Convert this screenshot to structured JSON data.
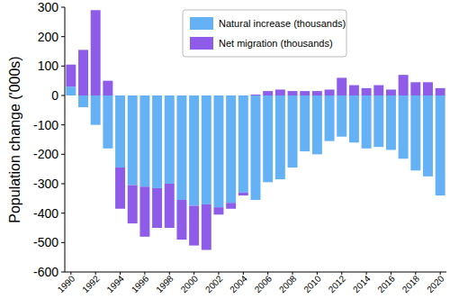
{
  "chart_data": {
    "type": "bar",
    "stacked": true,
    "legend": "upper center",
    "y_label": "Population change ('000s)",
    "categories": [
      "1990",
      null,
      "1992",
      null,
      "1994",
      null,
      "1996",
      null,
      "1998",
      null,
      "2000",
      null,
      "2002",
      null,
      "2004",
      null,
      "2006",
      null,
      "2008",
      null,
      "2010",
      null,
      "2012",
      null,
      "2014",
      null,
      "2016",
      null,
      "2018",
      null,
      "2020"
    ],
    "series": [
      {
        "name": "Natural increase (thousands)",
        "color": "#64b2f5",
        "values": [
          30,
          -40,
          -100,
          -180,
          -245,
          -305,
          -310,
          -315,
          -300,
          -355,
          -375,
          -370,
          -380,
          -365,
          -330,
          -355,
          -295,
          -285,
          -245,
          -190,
          -200,
          -155,
          -140,
          -160,
          -180,
          -175,
          -185,
          -215,
          -255,
          -275,
          -340
        ]
      },
      {
        "name": "Net migration (thousands)",
        "color": "#8e5ce8",
        "values": [
          75,
          155,
          290,
          50,
          -140,
          -130,
          -170,
          -135,
          -150,
          -135,
          -135,
          -155,
          -25,
          -20,
          -10,
          3,
          15,
          20,
          15,
          15,
          15,
          20,
          60,
          35,
          25,
          35,
          20,
          70,
          45,
          45,
          25
        ]
      }
    ],
    "ylim": [
      -600,
      300
    ],
    "yticks": [
      -600,
      -500,
      -400,
      -300,
      -200,
      -100,
      0,
      100,
      200,
      300
    ],
    "grid": false
  }
}
